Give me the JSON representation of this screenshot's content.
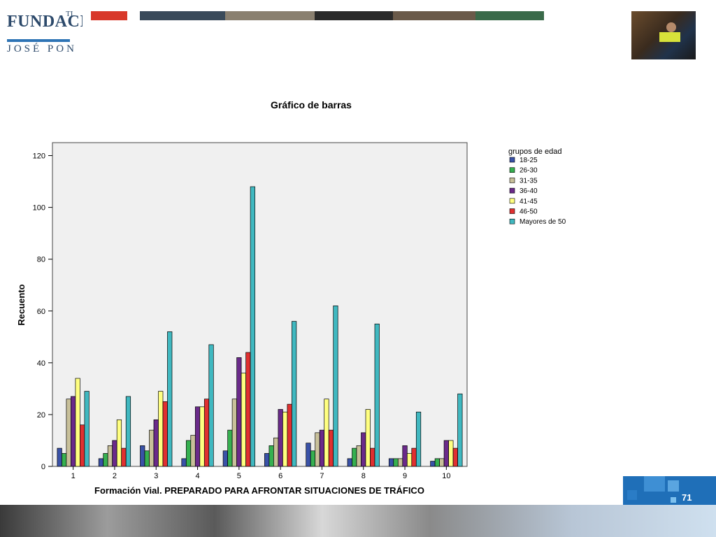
{
  "header": {
    "logo_line1": "FUNDACIÓ",
    "logo_sup": "TI",
    "logo_line2": "JOSÉ PON"
  },
  "page_number": "71",
  "colors": {
    "18-25": "#3a52a8",
    "26-30": "#36b050",
    "31-35": "#c8c09a",
    "36-40": "#6a2a8a",
    "41-45": "#ffff80",
    "46-50": "#e03030",
    "Mayores de 50": "#40b8c0",
    "plot_bg": "#f0f0f0",
    "blue_band": "#1f6fb8"
  },
  "chart_data": {
    "type": "bar",
    "title": "Gráfico de barras",
    "xlabel": "Formación Vial. PREPARADO PARA AFRONTAR SITUACIONES DE TRÁFICO",
    "ylabel": "Recuento",
    "ylim": [
      0,
      125
    ],
    "yticks": [
      0,
      20,
      40,
      60,
      80,
      100,
      120
    ],
    "categories": [
      "1",
      "2",
      "3",
      "4",
      "5",
      "6",
      "7",
      "8",
      "9",
      "10"
    ],
    "legend_title": "grupos de edad",
    "legend_position": "top-right, outside plot",
    "grid": false,
    "series": [
      {
        "name": "18-25",
        "values": [
          7,
          3,
          8,
          3,
          6,
          5,
          9,
          3,
          3,
          2
        ]
      },
      {
        "name": "26-30",
        "values": [
          5,
          5,
          6,
          10,
          14,
          8,
          6,
          7,
          3,
          3
        ]
      },
      {
        "name": "31-35",
        "values": [
          26,
          8,
          14,
          12,
          26,
          11,
          13,
          8,
          3,
          3
        ]
      },
      {
        "name": "36-40",
        "values": [
          27,
          10,
          18,
          23,
          42,
          22,
          14,
          13,
          8,
          10
        ]
      },
      {
        "name": "41-45",
        "values": [
          34,
          18,
          29,
          23,
          36,
          21,
          26,
          22,
          5,
          10
        ]
      },
      {
        "name": "46-50",
        "values": [
          16,
          7,
          25,
          26,
          44,
          24,
          14,
          7,
          7,
          7
        ]
      },
      {
        "name": "Mayores de 50",
        "values": [
          29,
          27,
          52,
          47,
          108,
          56,
          62,
          55,
          21,
          28
        ]
      }
    ]
  }
}
